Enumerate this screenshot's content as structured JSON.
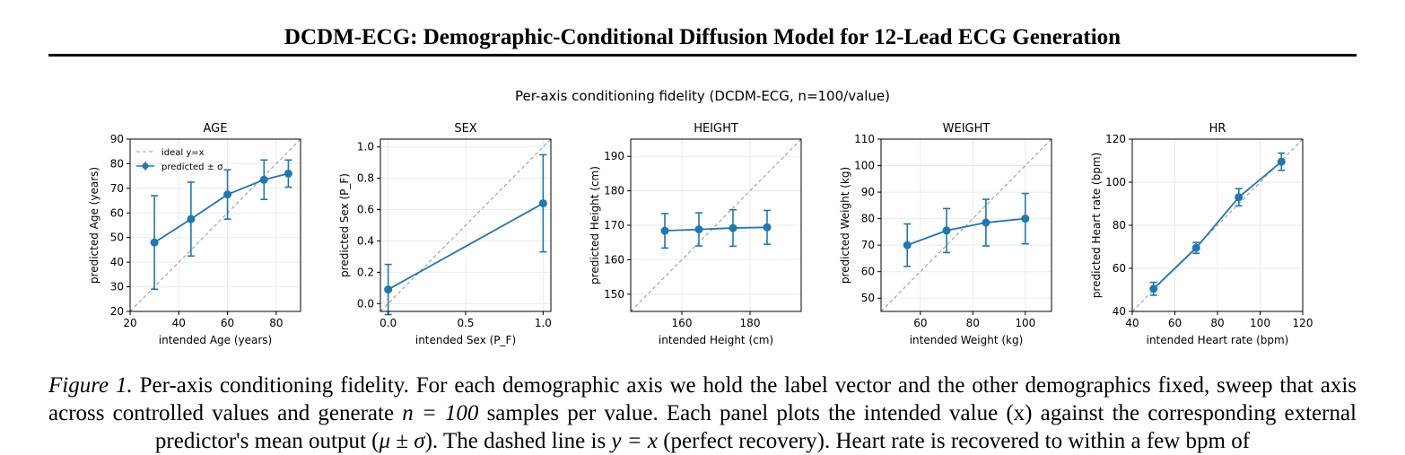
{
  "paper": {
    "running_title": "DCDM-ECG: Demographic-Conditional Diffusion Model for 12-Lead ECG Generation"
  },
  "figure": {
    "suptitle": "Per-axis conditioning fidelity (DCDM-ECG, n=100/value)",
    "caption_label": "Figure 1.",
    "caption_sentence_1": "Per-axis conditioning fidelity. For each demographic axis we hold the label vector and the other demographics fixed, sweep that axis across controlled values and generate",
    "caption_math_n": "n = 100",
    "caption_sentence_2": "samples per value. Each panel plots the intended value (x) against the corresponding",
    "caption_sentence_3": "external predictor's mean output (",
    "caption_math_mu": "μ ± σ",
    "caption_sentence_4": "). The dashed line is",
    "caption_math_yx": "y = x",
    "caption_sentence_5": "(perfect recovery). Heart rate is recovered to within a few bpm of",
    "colors": {
      "series": "#1f77b4",
      "ideal": "#9e9e9e",
      "grid": "#ebebeb"
    }
  },
  "chart_data": [
    {
      "type": "line",
      "title": "AGE",
      "xlabel": "intended Age (years)",
      "ylabel": "predicted Age (years)",
      "xlim": [
        20,
        90
      ],
      "ylim": [
        20,
        90
      ],
      "xticks": [
        20,
        40,
        60,
        80
      ],
      "yticks": [
        20,
        30,
        40,
        50,
        60,
        70,
        80,
        90
      ],
      "tick_decimals": 0,
      "grid": true,
      "legend": {
        "placement": "upper-left",
        "entries": [
          "ideal y=x",
          "predicted ± σ"
        ]
      },
      "ideal_line": "y=x",
      "x": [
        30,
        45,
        60,
        75,
        85
      ],
      "y": [
        48,
        57.5,
        67.5,
        73.5,
        76
      ],
      "yerr": [
        19,
        15,
        10,
        8,
        5.5
      ]
    },
    {
      "type": "line",
      "title": "SEX",
      "xlabel": "intended Sex (P_F)",
      "ylabel": "predicted Sex (P_F)",
      "xlim": [
        -0.05,
        1.05
      ],
      "ylim": [
        -0.05,
        1.05
      ],
      "xticks": [
        0.0,
        0.5,
        1.0
      ],
      "yticks": [
        0.0,
        0.2,
        0.4,
        0.6,
        0.8,
        1.0
      ],
      "tick_decimals": 1,
      "grid": true,
      "ideal_line": "y=x",
      "x": [
        0.0,
        1.0
      ],
      "y": [
        0.09,
        0.64
      ],
      "yerr": [
        0.16,
        0.31
      ]
    },
    {
      "type": "line",
      "title": "HEIGHT",
      "xlabel": "intended Height (cm)",
      "ylabel": "predicted Height (cm)",
      "xlim": [
        145,
        195
      ],
      "ylim": [
        145,
        195
      ],
      "xticks": [
        160,
        180
      ],
      "yticks": [
        150,
        160,
        170,
        180,
        190
      ],
      "tick_decimals": 0,
      "grid": true,
      "ideal_line": "y=x",
      "x": [
        155,
        165,
        175,
        185
      ],
      "y": [
        168.4,
        168.8,
        169.2,
        169.4
      ],
      "yerr": [
        5,
        4.8,
        5.3,
        4.9
      ]
    },
    {
      "type": "line",
      "title": "WEIGHT",
      "xlabel": "intended Weight (kg)",
      "ylabel": "predicted Weight (kg)",
      "xlim": [
        45,
        110
      ],
      "ylim": [
        45,
        110
      ],
      "xticks": [
        60,
        80,
        100
      ],
      "yticks": [
        50,
        60,
        70,
        80,
        90,
        100,
        110
      ],
      "tick_decimals": 0,
      "grid": true,
      "ideal_line": "y=x",
      "x": [
        55,
        70,
        85,
        100
      ],
      "y": [
        70,
        75.5,
        78.5,
        80
      ],
      "yerr": [
        8,
        8.3,
        8.8,
        9.5
      ]
    },
    {
      "type": "line",
      "title": "HR",
      "xlabel": "intended Heart rate (bpm)",
      "ylabel": "predicted Heart rate (bpm)",
      "xlim": [
        40,
        120
      ],
      "ylim": [
        40,
        120
      ],
      "xticks": [
        40,
        60,
        80,
        100,
        120
      ],
      "yticks": [
        40,
        60,
        80,
        100,
        120
      ],
      "tick_decimals": 0,
      "grid": true,
      "ideal_line": "y=x",
      "x": [
        50,
        70,
        90,
        110
      ],
      "y": [
        50.5,
        69.5,
        93,
        109.5
      ],
      "yerr": [
        3,
        2.5,
        4,
        4
      ]
    }
  ]
}
